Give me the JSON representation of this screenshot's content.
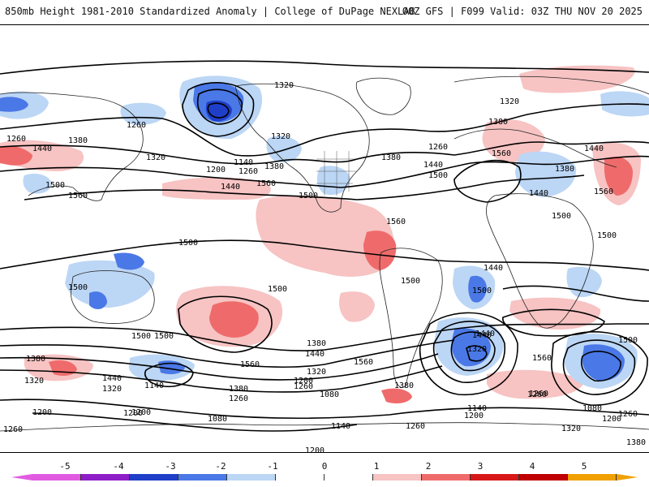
{
  "header": {
    "left": "850mb Height 1981-2010 Standardized Anomaly | College of DuPage NEXLAB",
    "right": "00Z GFS | F099 Valid: 03Z THU NOV 20 2025"
  },
  "colors": {
    "neg5": "#e15be1",
    "neg4": "#8e1ec8",
    "neg3": "#1f3fc8",
    "neg2": "#4a78e6",
    "neg1": "#bcd6f5",
    "zero_neg": "#ffffff",
    "zero_pos": "#ffffff",
    "pos1": "#f7c3c3",
    "pos2": "#ef6b6b",
    "pos3": "#d81818",
    "pos4": "#c00000",
    "pos5": "#f0a000",
    "contour": "#000000",
    "coast": "#222222"
  },
  "colorbar": {
    "ticks": [
      "-5",
      "-4",
      "-3",
      "-2",
      "-1",
      "0",
      "1",
      "2",
      "3",
      "4",
      "5"
    ],
    "segments": [
      "neg5",
      "neg4",
      "neg3",
      "neg2",
      "neg1",
      "zero_neg",
      "zero_pos",
      "pos1",
      "pos2",
      "pos3",
      "pos4",
      "pos5"
    ]
  },
  "contour_labels": [
    {
      "text": "1320"
    },
    {
      "text": "1260"
    },
    {
      "text": "1380"
    },
    {
      "text": "1440"
    },
    {
      "text": "1500"
    },
    {
      "text": "1560"
    },
    {
      "text": "1200"
    },
    {
      "text": "1140"
    },
    {
      "text": "1080"
    }
  ],
  "map_labels": {
    "c1320_top": "1320",
    "c1260_a": "1260",
    "c1380_a": "1380",
    "c1440_a": "1440",
    "c1500_a": "1500",
    "c1560_a": "1560",
    "c1320_b": "1320",
    "c1260_b": "1260",
    "c1140_a": "1140",
    "c1200_a": "1200",
    "c1380_b": "1380",
    "c1440_b": "1440",
    "c1560_b": "1560",
    "c1500_b": "1500",
    "c1320_c": "1320",
    "c1260_c": "1260",
    "c1380_c": "1380",
    "c1440_c": "1440",
    "c1500_c": "1500",
    "c1560_c": "1560",
    "c1500_d": "1500",
    "c1560_d": "1560",
    "c1440_d": "1440",
    "c1500_e": "1500",
    "c1500_f": "1500",
    "c1500_g": "1500",
    "c1500_h": "1500",
    "c1500_i": "1500",
    "c1500_j": "1500",
    "c1560_e": "1560",
    "c1440_e": "1440",
    "c1380_d": "1380",
    "c1320_d": "1320",
    "c1260_d": "1260",
    "c1200_b": "1200",
    "c1140_b": "1140",
    "c1080_a": "1080",
    "c1200_c": "1200",
    "c1260_e": "1260",
    "c1380_e": "1380",
    "c1320_e": "1320",
    "c1440_f": "1440",
    "c1560_f": "1560",
    "c1380_f": "1380",
    "c1440_g": "1440",
    "c1200_d": "1200",
    "c1080_b": "1080",
    "c1140_c": "1140",
    "c1200_e": "1200",
    "c1260_f": "1260",
    "c1320_f": "1320",
    "c1380_g": "1380",
    "c1560_g": "1560",
    "c1440_h": "1440",
    "c1320_g": "1320",
    "c1140_d": "1140",
    "c1200_f": "1200",
    "c1260_g": "1260",
    "c1080_c": "1080",
    "c1200_g": "1200",
    "c1260_h": "1260",
    "c1320_h": "1320",
    "c1380_h": "1380",
    "c1500_k": "1500",
    "c1260_i": "1260",
    "c1200_h": "1200",
    "c1260_j": "1260",
    "c1380_i": "1380",
    "c1440_i": "1440",
    "c1320_i": "1320",
    "c1260_k": "1260",
    "c1500_l": "1500",
    "c1560_h": "1560",
    "c1500_m": "1500",
    "c1260_l": "1260",
    "c1380_j": "1380",
    "c1440_j": "1440",
    "c1500_n": "1500",
    "c1560_i": "1560"
  }
}
